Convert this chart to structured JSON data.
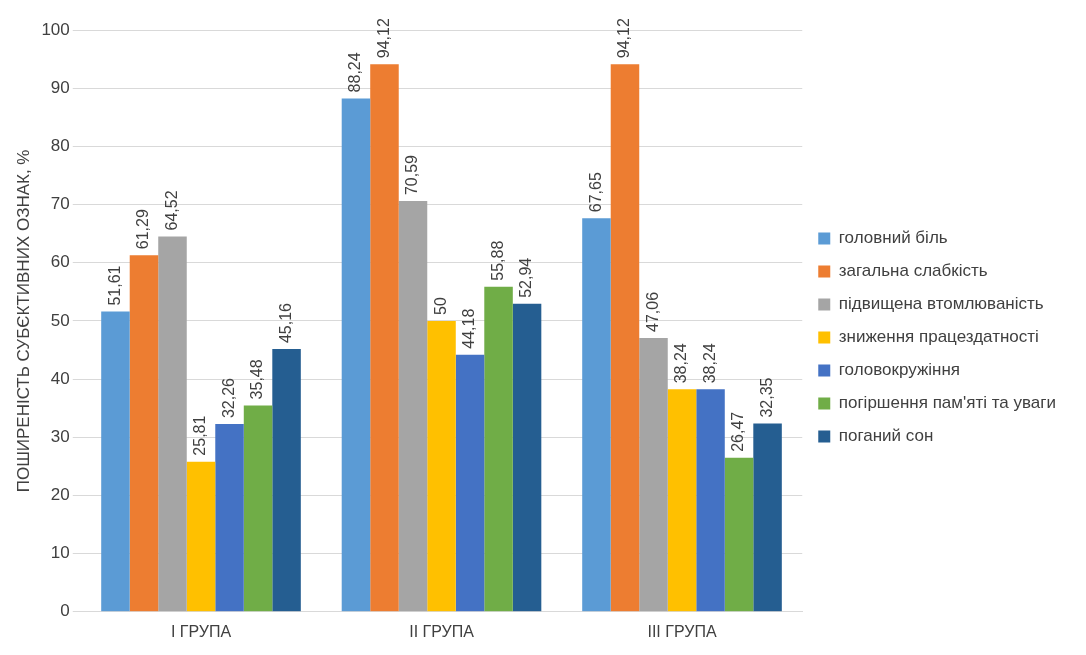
{
  "chart_data": {
    "type": "bar",
    "ylabel": "ПОШИРЕНІСТЬ СУБЄКТИВНИХ ОЗНАК, %",
    "categories": [
      "I ГРУПА",
      "II ГРУПА",
      "III ГРУПА"
    ],
    "series": [
      {
        "name": "головний біль",
        "color": "#5b9bd5",
        "values": [
          51.61,
          88.24,
          67.65
        ],
        "value_labels": [
          "51,61",
          "88,24",
          "67,65"
        ]
      },
      {
        "name": "загальна слабкість",
        "color": "#ed7d31",
        "values": [
          61.29,
          94.12,
          94.12
        ],
        "value_labels": [
          "61,29",
          "94,12",
          "94,12"
        ]
      },
      {
        "name": "підвищена втомлюваність",
        "color": "#a5a5a5",
        "values": [
          64.52,
          70.59,
          47.06
        ],
        "value_labels": [
          "64,52",
          "70,59",
          "47,06"
        ]
      },
      {
        "name": "зниження працездатності",
        "color": "#ffc000",
        "values": [
          25.81,
          50,
          38.24
        ],
        "value_labels": [
          "25,81",
          "50",
          "38,24"
        ]
      },
      {
        "name": "головокружіння",
        "color": "#4472c4",
        "values": [
          32.26,
          44.18,
          38.24
        ],
        "value_labels": [
          "32,26",
          "44,18",
          "38,24"
        ]
      },
      {
        "name": "погіршення пам'яті та уваги",
        "color": "#70ad47",
        "values": [
          35.48,
          55.88,
          26.47
        ],
        "value_labels": [
          "35,48",
          "55,88",
          "26,47"
        ]
      },
      {
        "name": "поганий сон",
        "color": "#255e91",
        "values": [
          45.16,
          52.94,
          32.35
        ],
        "value_labels": [
          "45,16",
          "52,94",
          "32,35"
        ]
      }
    ],
    "ylim": [
      0,
      100
    ],
    "yticks": [
      0,
      10,
      20,
      30,
      40,
      50,
      60,
      70,
      80,
      90,
      100
    ],
    "grid": "y",
    "legend": "right"
  }
}
